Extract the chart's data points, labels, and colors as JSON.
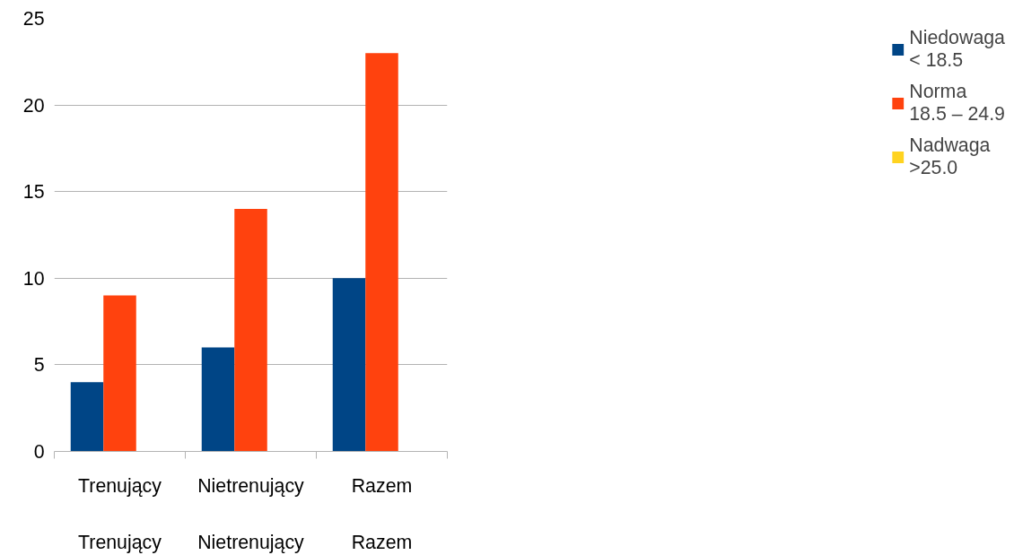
{
  "chart_data": {
    "type": "bar",
    "categories": [
      "Trenujący",
      "Nietrenujący",
      "Razem"
    ],
    "series": [
      {
        "name": "Niedowaga\n< 18.5",
        "color": "#004586",
        "values": [
          4,
          6,
          10
        ]
      },
      {
        "name": "Norma\n18.5 – 24.9",
        "color": "#ff420e",
        "values": [
          9,
          14,
          23
        ]
      },
      {
        "name": "Nadwaga\n>25.0",
        "color": "#ffd320",
        "values": [
          0,
          0,
          0
        ]
      }
    ],
    "ylim": [
      0,
      25
    ],
    "yticks": [
      0,
      5,
      10,
      15,
      20,
      25
    ],
    "grid": "y",
    "legend": "right",
    "annotations": [
      "Trenujący",
      "Nietrenujący",
      "Razem"
    ]
  }
}
